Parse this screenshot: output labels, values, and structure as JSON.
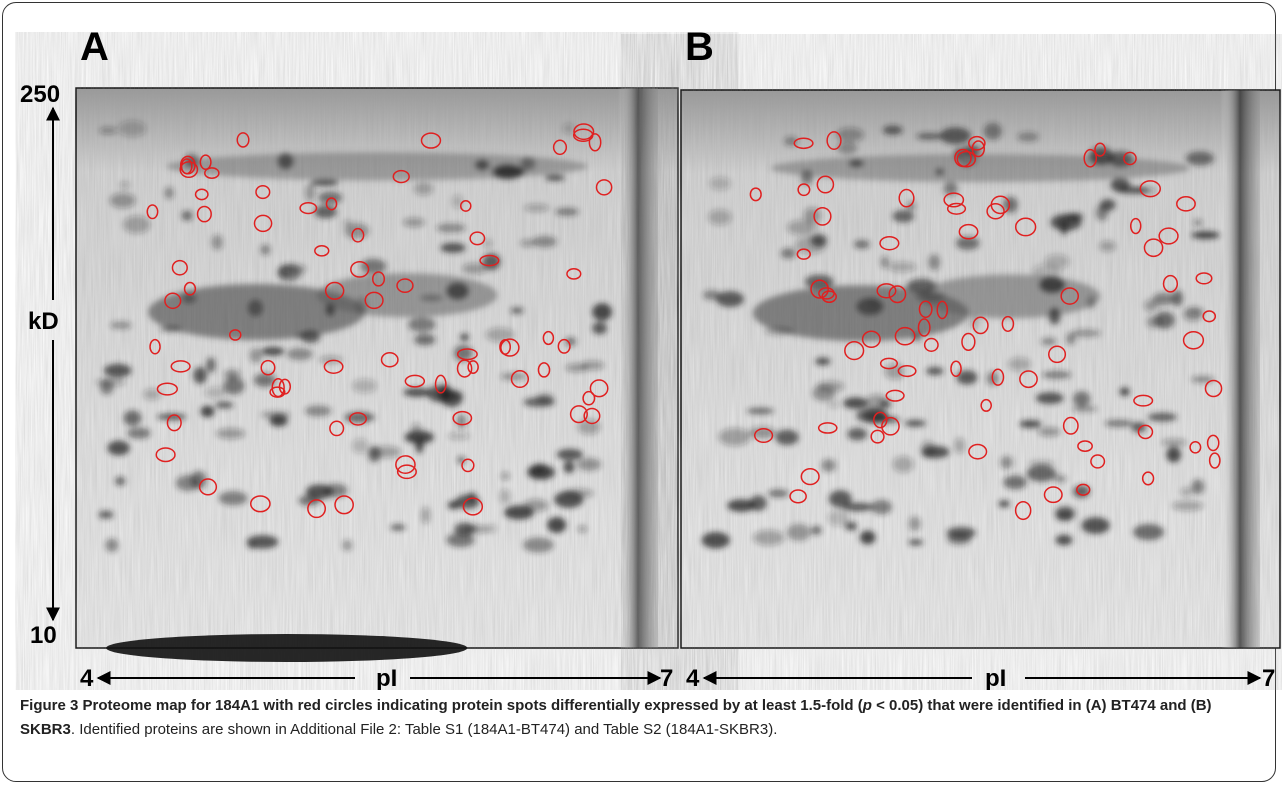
{
  "panels": [
    {
      "label": "A",
      "y_top": "250",
      "y_bottom": "10",
      "y_title": "kD",
      "x_left": "4",
      "x_title": "pI",
      "x_right": "7"
    },
    {
      "label": "B",
      "x_left": "4",
      "x_title": "pI",
      "x_right": "7"
    }
  ],
  "caption": {
    "bold_1": "Figure 3 Proteome map for 184A1 with red circles indicating protein spots differentially expressed by at least 1.5-fold (",
    "bold_italic": "p",
    "bold_2": " < 0.05) that were identified in (A) BT474 and (B) SKBR3",
    "rest": ". Identified proteins are shown in Additional File 2: Table S1 (184A1-BT474) and Table S2 (184A1-SKBR3)."
  }
}
